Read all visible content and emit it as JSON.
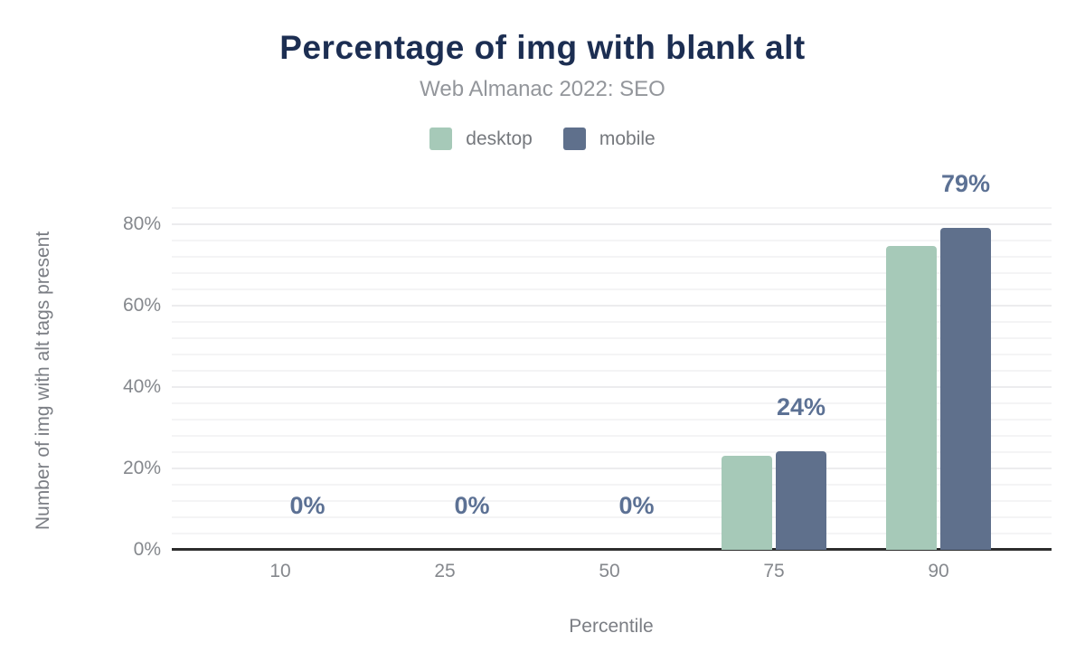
{
  "chart_data": {
    "type": "bar",
    "title": "Percentage of img with blank alt",
    "subtitle": "Web Almanac 2022: SEO",
    "xlabel": "Percentile",
    "ylabel": "Number of img with alt tags present",
    "categories": [
      "10",
      "25",
      "50",
      "75",
      "90"
    ],
    "series": [
      {
        "name": "desktop",
        "color": "#a6c9b8",
        "values": [
          0,
          0,
          0,
          23.2,
          74.6
        ]
      },
      {
        "name": "mobile",
        "color": "#5f708c",
        "values": [
          0,
          0,
          0,
          24.2,
          79
        ]
      }
    ],
    "bar_labels": [
      "0%",
      "0%",
      "0%",
      "24%",
      "79%"
    ],
    "y_tick_values": [
      0,
      20,
      40,
      60,
      80
    ],
    "y_tick_labels": [
      "0%",
      "20%",
      "40%",
      "60%",
      "80%"
    ],
    "ylim": [
      0,
      86
    ],
    "grid": "horizontal, minor every 4%, major every 20%",
    "legend_position": "top-center"
  },
  "colors": {
    "title": "#1c2e52",
    "subtitle": "#93969b",
    "axis_text": "#85888d",
    "axis_title_text": "#7b7e84",
    "data_label": "#5c7194",
    "baseline": "#2d2d2d",
    "grid_minor": "#f4f4f5",
    "grid_major": "#ececee",
    "desktop_bar": "#a6c9b8",
    "mobile_bar": "#5f708c"
  }
}
